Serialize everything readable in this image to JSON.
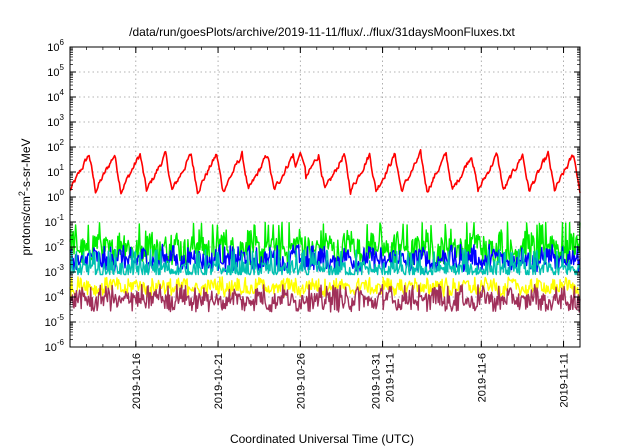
{
  "chart_data": {
    "type": "line",
    "title": "/data/run/goesPlots/archive/2019-11-11/flux/../flux/31daysMoonFluxes.txt",
    "xlabel": "Coordinated Universal Time (UTC)",
    "ylabel": "protons/cm2-s-sr-MeV",
    "y_scale": "log",
    "ylim_exponents": [
      -6,
      6
    ],
    "y_ticks": [
      {
        "base": "10",
        "exp": "-6"
      },
      {
        "base": "10",
        "exp": "-5"
      },
      {
        "base": "10",
        "exp": "-4"
      },
      {
        "base": "10",
        "exp": "-3"
      },
      {
        "base": "10",
        "exp": "-2"
      },
      {
        "base": "10",
        "exp": "-1"
      },
      {
        "base": "10",
        "exp": "0"
      },
      {
        "base": "10",
        "exp": "1"
      },
      {
        "base": "10",
        "exp": "2"
      },
      {
        "base": "10",
        "exp": "3"
      },
      {
        "base": "10",
        "exp": "4"
      },
      {
        "base": "10",
        "exp": "5"
      },
      {
        "base": "10",
        "exp": "6"
      }
    ],
    "x_range_days": [
      "2019-10-12 00:00",
      "2019-11-12 00:00"
    ],
    "x_ticks": [
      {
        "date": "2019-10-16",
        "lines": [
          "2019-10-16"
        ]
      },
      {
        "date": "2019-10-21",
        "lines": [
          "2019-10-21"
        ]
      },
      {
        "date": "2019-10-26",
        "lines": [
          "2019-10-26"
        ]
      },
      {
        "date": "2019-10-31",
        "lines": [
          "2019-10-31",
          "2019-11-1"
        ]
      },
      {
        "date": "2019-11-06",
        "lines": [
          "2019-11-6"
        ]
      },
      {
        "date": "2019-11-11",
        "lines": [
          "2019-11-11"
        ]
      }
    ],
    "grid": true,
    "legend": "none",
    "series": [
      {
        "color": "#ff0000",
        "typical_log10": 0.9,
        "range_log10": [
          0.0,
          1.8
        ],
        "peak": {
          "date": "2019-10-26",
          "value": 60
        }
      },
      {
        "color": "#00ee00",
        "typical_log10": -2.0,
        "range_log10": [
          -2.7,
          -1.0
        ]
      },
      {
        "color": "#0000ff",
        "typical_log10": -2.5,
        "range_log10": [
          -3.0,
          -1.9
        ]
      },
      {
        "color": "#00c0b0",
        "typical_log10": -2.9,
        "range_log10": [
          -3.1,
          -2.1
        ]
      },
      {
        "color": "#ffff00",
        "typical_log10": -3.6,
        "range_log10": [
          -4.0,
          -3.2
        ]
      },
      {
        "color": "#a0305a",
        "typical_log10": -4.1,
        "range_log10": [
          -4.6,
          -3.5
        ]
      }
    ]
  }
}
